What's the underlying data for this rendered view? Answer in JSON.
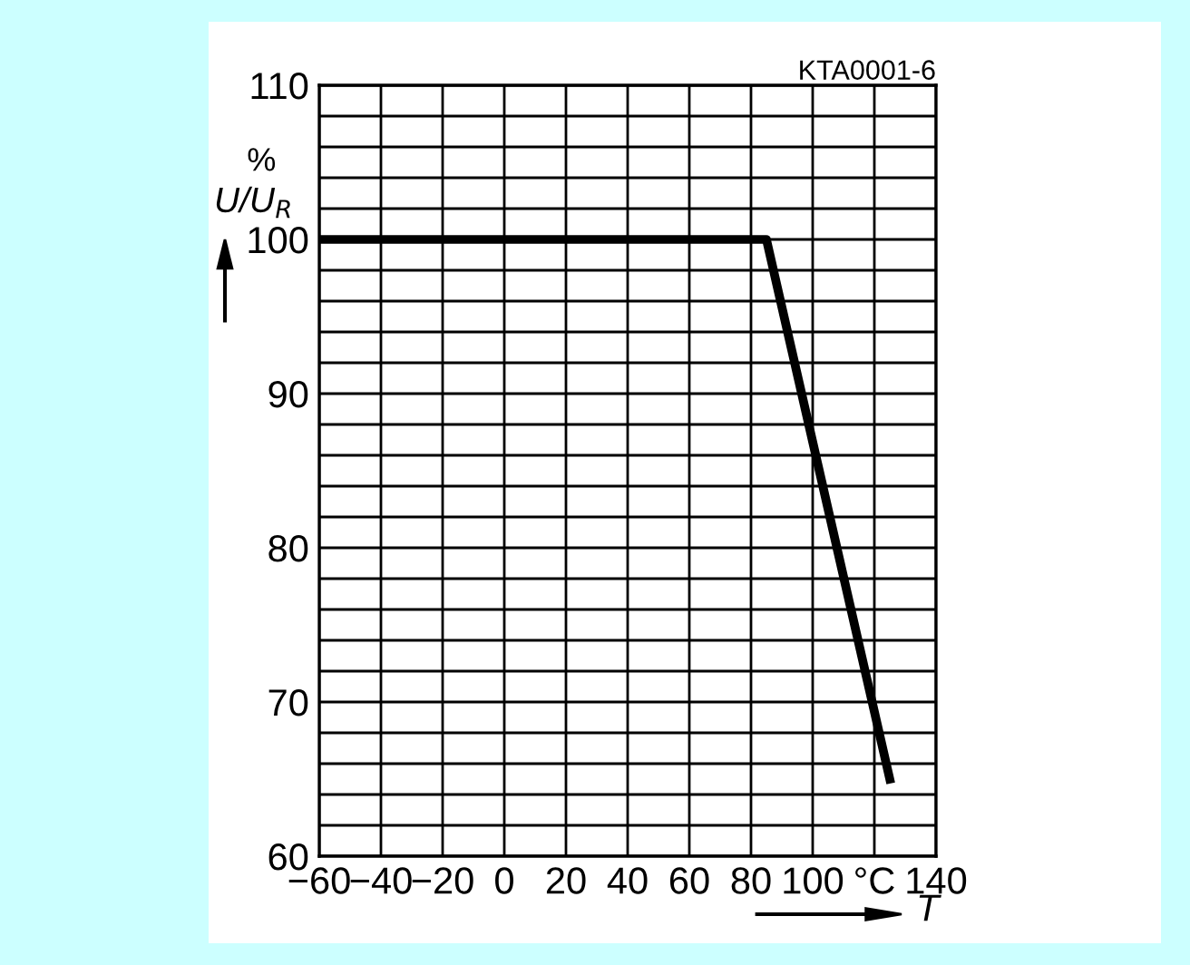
{
  "chart_data": {
    "type": "line",
    "x": [
      -60,
      85,
      125
    ],
    "values": [
      100,
      100,
      65
    ],
    "color": "#000000",
    "xlabel": "T",
    "ylabel": "U/U$_{R}$",
    "annotations": [
      "%",
      "KTA0001-6"
    ],
    "xlim": [
      -60,
      140
    ],
    "xticks": [
      -60,
      -40,
      -20,
      0,
      20,
      40,
      60,
      80,
      100,
      {
        "value": 120,
        "label": "°C"
      },
      140
    ],
    "ylim": [
      60,
      110
    ],
    "yticks": [
      60,
      {
        "value": 62,
        "label": null
      },
      {
        "value": 64,
        "label": null
      },
      {
        "value": 66,
        "label": null
      },
      {
        "value": 68,
        "label": null
      },
      70,
      {
        "value": 72,
        "label": null
      },
      {
        "value": 74,
        "label": null
      },
      {
        "value": 76,
        "label": null
      },
      {
        "value": 78,
        "label": null
      },
      80,
      {
        "value": 82,
        "label": null
      },
      {
        "value": 84,
        "label": null
      },
      {
        "value": 86,
        "label": null
      },
      {
        "value": 88,
        "label": null
      },
      90,
      {
        "value": 92,
        "label": null
      },
      {
        "value": 94,
        "label": null
      },
      {
        "value": 96,
        "label": null
      },
      {
        "value": 98,
        "label": null
      },
      100,
      {
        "value": 102,
        "label": null
      },
      {
        "value": 104,
        "label": null
      },
      {
        "value": 106,
        "label": null
      },
      {
        "value": 108,
        "label": null
      },
      110
    ],
    "grid": true,
    "marker": "none",
    "line_style": "solid"
  }
}
